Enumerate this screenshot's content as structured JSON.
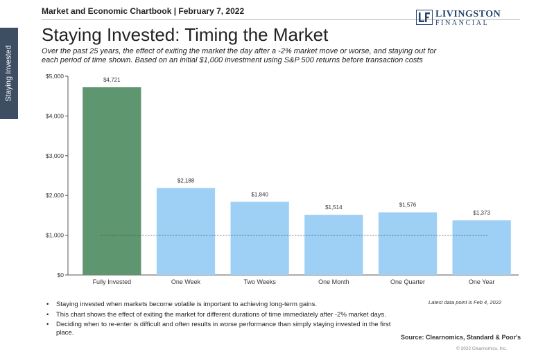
{
  "side_tab": "Staying Invested",
  "header": {
    "chartbook": "Market and Economic Chartbook | February 7, 2022",
    "logo_line1": "LIVINGSTON",
    "logo_line2": "FINANCIAL",
    "logo_icon": "lf-monogram-icon"
  },
  "title": "Staying Invested: Timing the Market",
  "subtitle": "Over the past 25 years, the effect of exiting the market the day after a -2% market move or worse, and staying out for each period of time shown. Based on an initial $1,000 investment using S&P 500 returns before transaction costs",
  "chart_data": {
    "type": "bar",
    "categories": [
      "Fully Invested",
      "One Week",
      "Two Weeks",
      "One Month",
      "One Quarter",
      "One Year"
    ],
    "values": [
      4721,
      2188,
      1840,
      1514,
      1576,
      1373
    ],
    "value_labels": [
      "$4,721",
      "$2,188",
      "$1,840",
      "$1,514",
      "$1,576",
      "$1,373"
    ],
    "ylim": [
      0,
      5000
    ],
    "yticks": [
      0,
      1000,
      2000,
      3000,
      4000,
      5000
    ],
    "ytick_labels": [
      "$0",
      "$1,000",
      "$2,000",
      "$3,000",
      "$4,000",
      "$5,000"
    ],
    "reference_line": 1000,
    "bar_colors": [
      "#5e9670",
      "#9ed0f5",
      "#9ed0f5",
      "#9ed0f5",
      "#9ed0f5",
      "#9ed0f5"
    ],
    "grid": false,
    "xlabel": "",
    "ylabel": ""
  },
  "bullets": [
    "Staying invested when markets become volatile is important to achieving long-term gains.",
    "This chart shows the effect of exiting the market for different durations of time immediately after -2% market days.",
    "Deciding when to re-enter is difficult and often results in worse performance than simply staying invested in the first place."
  ],
  "latest_note": "Latest data point is Feb 4, 2022",
  "source": "Source: Clearnomics, Standard & Poor's",
  "copyright": "© 2022 Clearnomics, Inc."
}
